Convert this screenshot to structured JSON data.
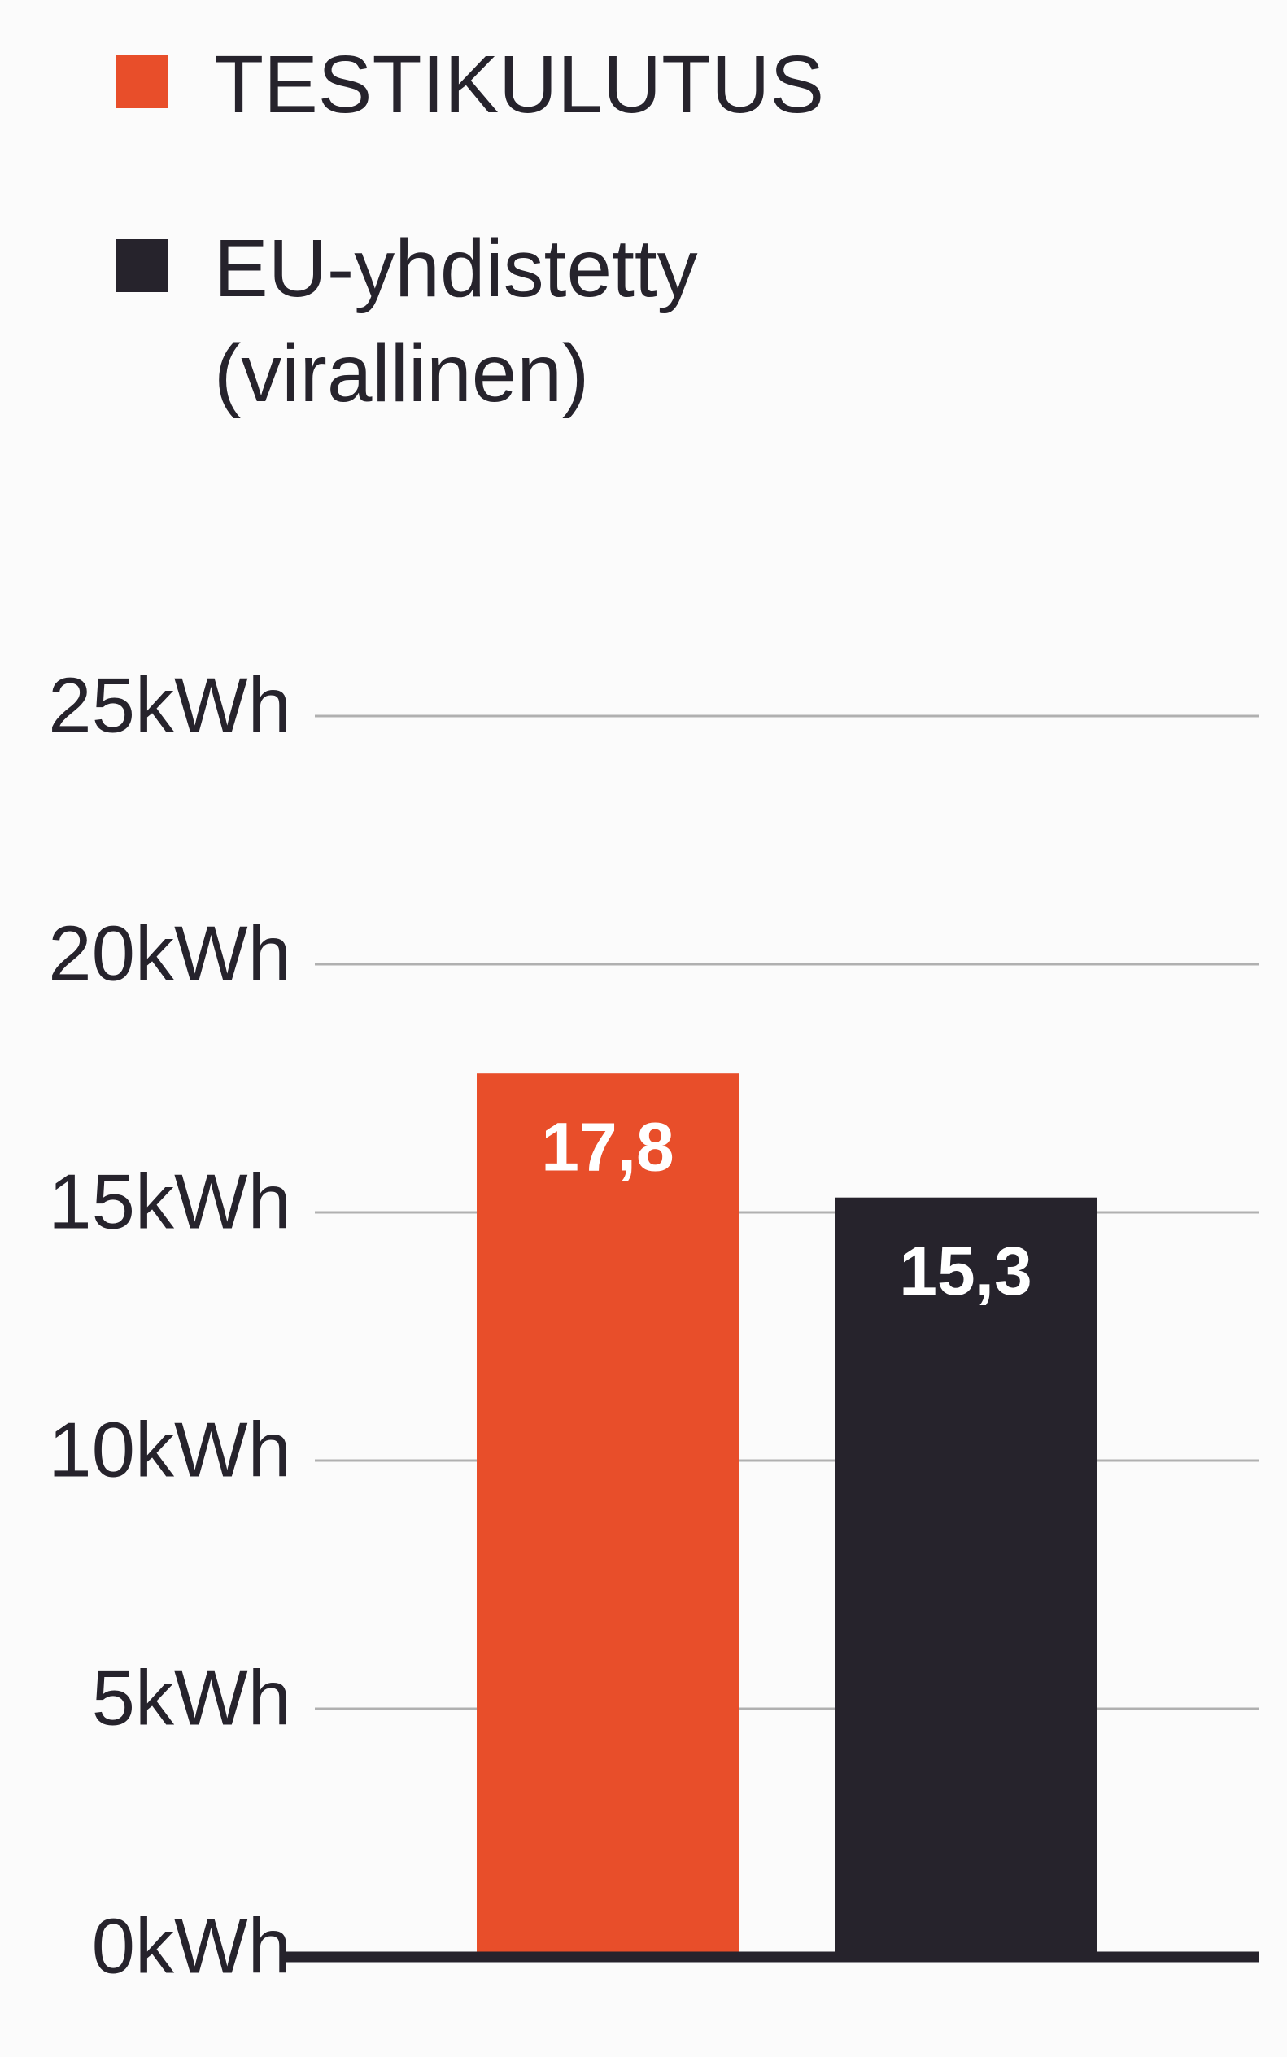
{
  "chart_data": {
    "type": "bar",
    "categories": [
      null
    ],
    "series": [
      {
        "name": "TESTIKULUTUS",
        "color": "#e84e2a",
        "values": [
          17.8
        ],
        "value_labels": [
          "17,8"
        ]
      },
      {
        "name": "EU-yhdistetty (virallinen)",
        "color": "#26232c",
        "values": [
          15.3
        ],
        "value_labels": [
          "15,3"
        ]
      }
    ],
    "ylim": [
      0,
      25
    ],
    "yticks": [
      {
        "value": 0,
        "label": "0kWh"
      },
      {
        "value": 5,
        "label": "5kWh"
      },
      {
        "value": 10,
        "label": "10kWh"
      },
      {
        "value": 15,
        "label": "15kWh"
      },
      {
        "value": 20,
        "label": "20kWh"
      },
      {
        "value": 25,
        "label": "25kWh"
      }
    ],
    "grid": true
  }
}
